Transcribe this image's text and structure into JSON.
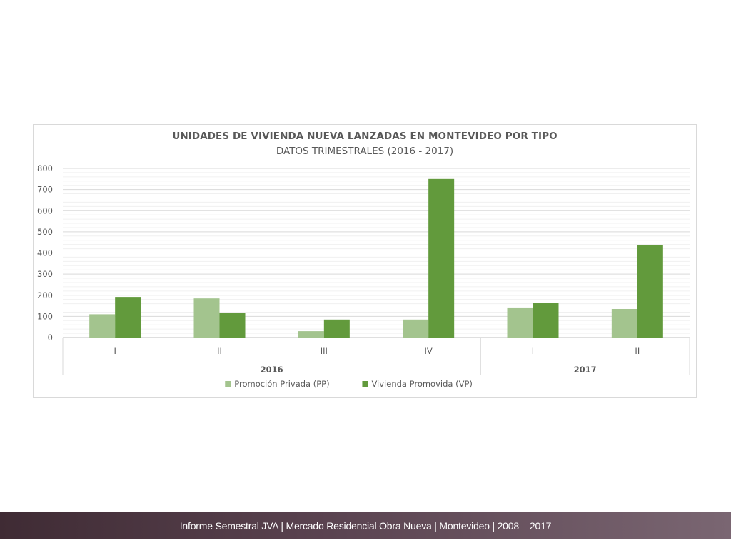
{
  "footer": {
    "text": "Informe Semestral JVA | Mercado Residencial Obra Nueva | Montevideo | 2008 – 2017"
  },
  "chart_data": {
    "type": "bar",
    "title": "UNIDADES DE VIVIENDA NUEVA LANZADAS EN MONTEVIDEO POR TIPO",
    "subtitle": "DATOS TRIMESTRALES (2016 - 2017)",
    "categories": [
      "I",
      "II",
      "III",
      "IV",
      "I",
      "II"
    ],
    "groups": [
      {
        "label": "2016",
        "count": 4
      },
      {
        "label": "2017",
        "count": 2
      }
    ],
    "series": [
      {
        "name": "Promoción Privada (PP)",
        "color": "#a3c48e",
        "values": [
          110,
          185,
          30,
          85,
          142,
          135
        ]
      },
      {
        "name": "Vivienda Promovida (VP)",
        "color": "#629a3c",
        "values": [
          192,
          115,
          85,
          750,
          162,
          437
        ]
      }
    ],
    "ylim": [
      0,
      800
    ],
    "yticks": [
      0,
      100,
      200,
      300,
      400,
      500,
      600,
      700,
      800
    ],
    "grid": true,
    "legend": "bottom"
  }
}
